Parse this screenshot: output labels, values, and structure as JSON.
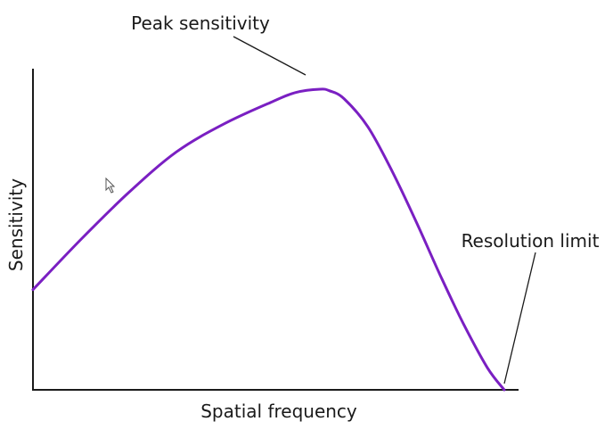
{
  "chart_data": {
    "type": "line",
    "title": "",
    "xlabel": "Spatial frequency",
    "ylabel": "Sensitivity",
    "xlim": [
      0,
      100
    ],
    "ylim": [
      0,
      100
    ],
    "grid": false,
    "legend": "none",
    "series": [
      {
        "color": "#7a1fc2",
        "x": [
          0,
          10,
          20,
          30,
          40,
          50,
          55,
          60,
          62,
          65,
          70,
          75,
          80,
          85,
          90,
          95,
          98.5
        ],
        "y": [
          32,
          48,
          63,
          76,
          85,
          92,
          95,
          96,
          95.5,
          93,
          84,
          70,
          54,
          37,
          21,
          7,
          0
        ]
      }
    ],
    "annotations": [
      {
        "text": "Peak sensitivity",
        "x": 58.5,
        "y": 96
      },
      {
        "text": "Resolution limit",
        "x": 98.5,
        "y": 0
      }
    ]
  }
}
